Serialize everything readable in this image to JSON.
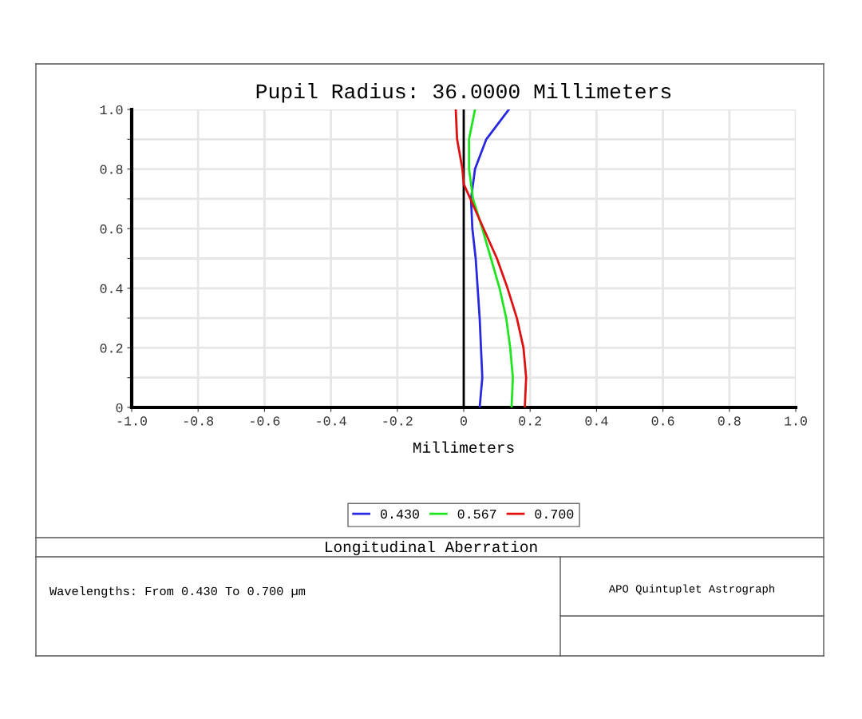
{
  "chart_data": {
    "type": "line",
    "title": "Pupil Radius: 36.0000 Millimeters",
    "xlabel": "Millimeters",
    "series": [
      {
        "name": "0.430",
        "color": "#2828e0",
        "x": [
          0.048,
          0.056,
          0.048,
          0.036,
          0.026,
          0.022,
          0.034,
          0.068,
          0.136
        ],
        "values": [
          0,
          0.1,
          0.3,
          0.5,
          0.6,
          0.7,
          0.8,
          0.9,
          1.0
        ]
      },
      {
        "name": "0.567",
        "color": "#1ee61e",
        "x": [
          0.144,
          0.148,
          0.14,
          0.128,
          0.108,
          0.082,
          0.056,
          0.028,
          0.016,
          0.016,
          0.034
        ],
        "values": [
          0,
          0.1,
          0.2,
          0.3,
          0.4,
          0.5,
          0.6,
          0.7,
          0.8,
          0.9,
          1.0
        ]
      },
      {
        "name": "0.700",
        "color": "#e01010",
        "x": [
          0.184,
          0.188,
          0.18,
          0.16,
          0.132,
          0.1,
          0.06,
          0.02,
          0,
          -0.004,
          -0.02,
          -0.024
        ],
        "values": [
          0,
          0.1,
          0.2,
          0.3,
          0.4,
          0.5,
          0.6,
          0.7,
          0.75,
          0.8,
          0.9,
          1.0
        ]
      }
    ],
    "xlim": [
      -1.0,
      1.0
    ],
    "xticks": [
      {
        "value": -1.0,
        "label": "-1.0"
      },
      {
        "value": -0.8,
        "label": "-0.8"
      },
      {
        "value": -0.6,
        "label": "-0.6"
      },
      {
        "value": -0.4,
        "label": "-0.4"
      },
      {
        "value": -0.2,
        "label": "-0.2"
      },
      {
        "value": 0,
        "label": "0"
      },
      {
        "value": 0.2,
        "label": "0.2"
      },
      {
        "value": 0.4,
        "label": "0.4"
      },
      {
        "value": 0.6,
        "label": "0.6"
      },
      {
        "value": 0.8,
        "label": "0.8"
      },
      {
        "value": 1.0,
        "label": "1.0"
      }
    ],
    "ylim": [
      0,
      1.0
    ],
    "yticks": [
      {
        "value": 0,
        "label": "0"
      },
      {
        "value": 0.1,
        "label": null
      },
      {
        "value": 0.2,
        "label": "0.2"
      },
      {
        "value": 0.3,
        "label": null
      },
      {
        "value": 0.4,
        "label": "0.4"
      },
      {
        "value": 0.5,
        "label": null
      },
      {
        "value": 0.6,
        "label": "0.6"
      },
      {
        "value": 0.7,
        "label": null
      },
      {
        "value": 0.8,
        "label": "0.8"
      },
      {
        "value": 0.9,
        "label": null
      },
      {
        "value": 1.0,
        "label": "1.0"
      }
    ],
    "ref_lines": [
      {
        "axis": "x",
        "value": 0,
        "color": "#000000"
      }
    ],
    "grid": true,
    "legend": "bottom",
    "line_style": "solid",
    "marker": "none",
    "annotations": [
      "Longitudinal Aberration",
      "Wavelengths: From 0.430 To 0.700 µm",
      "APO Quintuplet Astrograph"
    ]
  }
}
